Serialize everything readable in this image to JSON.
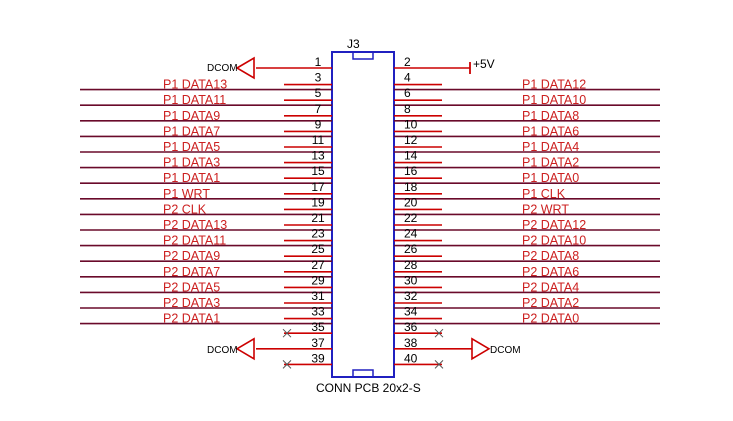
{
  "connector": {
    "ref": "J3",
    "part": "CONN PCB 20x2-S"
  },
  "left_pins": [
    {
      "pin": "1",
      "net": "",
      "power": "DCOM"
    },
    {
      "pin": "3",
      "net": "P1_DATA13"
    },
    {
      "pin": "5",
      "net": "P1_DATA11"
    },
    {
      "pin": "7",
      "net": "P1_DATA9"
    },
    {
      "pin": "9",
      "net": "P1_DATA7"
    },
    {
      "pin": "11",
      "net": "P1_DATA5"
    },
    {
      "pin": "13",
      "net": "P1_DATA3"
    },
    {
      "pin": "15",
      "net": "P1_DATA1"
    },
    {
      "pin": "17",
      "net": "P1_WRT"
    },
    {
      "pin": "19",
      "net": "P2_CLK"
    },
    {
      "pin": "21",
      "net": "P2_DATA13"
    },
    {
      "pin": "23",
      "net": "P2_DATA11"
    },
    {
      "pin": "25",
      "net": "P2_DATA9"
    },
    {
      "pin": "27",
      "net": "P2_DATA7"
    },
    {
      "pin": "29",
      "net": "P2_DATA5"
    },
    {
      "pin": "31",
      "net": "P2_DATA3"
    },
    {
      "pin": "33",
      "net": "P2_DATA1"
    },
    {
      "pin": "35",
      "net": "",
      "nc": true
    },
    {
      "pin": "37",
      "net": "",
      "power": "DCOM"
    },
    {
      "pin": "39",
      "net": "",
      "nc": true
    }
  ],
  "right_pins": [
    {
      "pin": "2",
      "net": "",
      "power": "+5V"
    },
    {
      "pin": "4",
      "net": "P1_DATA12"
    },
    {
      "pin": "6",
      "net": "P1_DATA10"
    },
    {
      "pin": "8",
      "net": "P1_DATA8"
    },
    {
      "pin": "10",
      "net": "P1_DATA6"
    },
    {
      "pin": "12",
      "net": "P1_DATA4"
    },
    {
      "pin": "14",
      "net": "P1_DATA2"
    },
    {
      "pin": "16",
      "net": "P1_DATA0"
    },
    {
      "pin": "18",
      "net": "P1_CLK"
    },
    {
      "pin": "20",
      "net": "P2_WRT"
    },
    {
      "pin": "22",
      "net": "P2_DATA12"
    },
    {
      "pin": "24",
      "net": "P2_DATA10"
    },
    {
      "pin": "26",
      "net": "P2_DATA8"
    },
    {
      "pin": "28",
      "net": "P2_DATA6"
    },
    {
      "pin": "30",
      "net": "P2_DATA4"
    },
    {
      "pin": "32",
      "net": "P2_DATA2"
    },
    {
      "pin": "34",
      "net": "P2_DATA0"
    },
    {
      "pin": "36",
      "net": "",
      "nc": true
    },
    {
      "pin": "38",
      "net": "",
      "power": "DCOM"
    },
    {
      "pin": "40",
      "net": "",
      "nc": true
    }
  ],
  "colors": {
    "body": "#2020c0",
    "pin": "#cc0000",
    "net_label": "#cc2020",
    "net_line": "#6a0a2a",
    "text": "#000000",
    "nc_mark": "#555555"
  }
}
